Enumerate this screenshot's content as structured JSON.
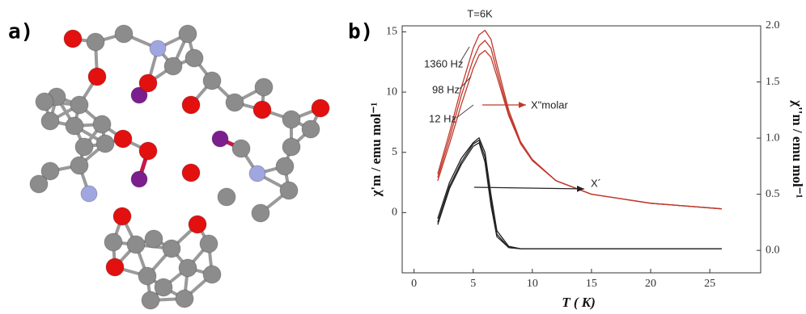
{
  "labels": {
    "a": "a)",
    "b": "b)"
  },
  "chart_data": {
    "type": "line",
    "x_label": "T ( K)",
    "y_label": "χ'm / emu mol⁻¹",
    "y2_label": "χ''m / emu mol⁻¹",
    "annotations": {
      "temperature": "T=6K",
      "out_of_phase": "X\"molar",
      "in_phase": "X´"
    },
    "x": [
      2,
      3,
      4,
      5,
      5.5,
      6,
      6.5,
      7,
      8,
      9,
      10,
      12,
      15,
      20,
      26
    ],
    "xlim": [
      -1,
      29.3
    ],
    "xticks": [
      0,
      5,
      10,
      15,
      20,
      25
    ],
    "ylim": [
      -5,
      15.5
    ],
    "yticks": [
      0,
      5,
      10,
      15
    ],
    "y2lim": [
      -0.2,
      2.0
    ],
    "y2ticks": [
      {
        "value": 0,
        "label": "0.0"
      },
      {
        "value": 0.5,
        "label": "0.5"
      },
      {
        "value": 1,
        "label": "1.0"
      },
      {
        "value": 1.5,
        "label": "1.5"
      },
      {
        "value": 2,
        "label": "2.0"
      }
    ],
    "series": [
      {
        "color": "#222222",
        "values": [
          -0.5,
          2.5,
          4.5,
          5.8,
          6.2,
          5.0,
          1.5,
          -1.5,
          -2.8,
          -3.0,
          -3.0,
          -3.0,
          -3.0,
          -3.0,
          -3.0
        ]
      },
      {
        "color": "#222222",
        "values": [
          -0.8,
          2.2,
          4.2,
          5.7,
          6.0,
          4.6,
          1.0,
          -1.8,
          -2.9,
          -3.0,
          -3.0,
          -3.0,
          -3.0,
          -3.0,
          -3.0
        ]
      },
      {
        "color": "#222222",
        "values": [
          -1.0,
          2.0,
          4.0,
          5.5,
          5.8,
          4.2,
          0.6,
          -2.0,
          -2.9,
          -3.0,
          -3.0,
          -3.0,
          -3.0,
          -3.0,
          -3.0
        ]
      },
      {
        "name": "12 Hz",
        "color": "#c0392b",
        "axis": "y2",
        "values": [
          0.62,
          0.95,
          1.3,
          1.62,
          1.74,
          1.78,
          1.72,
          1.55,
          1.2,
          0.95,
          0.8,
          0.62,
          0.5,
          0.42,
          0.37
        ]
      },
      {
        "name": "98 Hz",
        "color": "#c0392b",
        "axis": "y2",
        "values": [
          0.65,
          1.0,
          1.38,
          1.7,
          1.82,
          1.87,
          1.8,
          1.6,
          1.22,
          0.96,
          0.8,
          0.62,
          0.5,
          0.42,
          0.37
        ]
      },
      {
        "name": "1360 Hz",
        "color": "#c0392b",
        "axis": "y2",
        "values": [
          0.68,
          1.05,
          1.45,
          1.8,
          1.92,
          1.96,
          1.88,
          1.66,
          1.25,
          0.97,
          0.81,
          0.62,
          0.5,
          0.42,
          0.37
        ]
      }
    ]
  }
}
